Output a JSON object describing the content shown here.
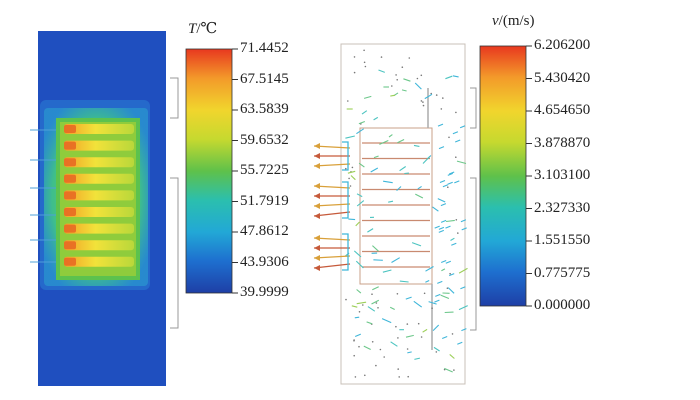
{
  "temperature_panel": {
    "symbol": "T",
    "unit": "/℃",
    "colorbar": {
      "ticks": [
        "71.4452",
        "67.5145",
        "63.5839",
        "59.6532",
        "55.7225",
        "51.7919",
        "47.8612",
        "43.9306",
        "39.9999"
      ]
    },
    "colors": {
      "background": "#1f4fbf",
      "hot": "#e84a1e",
      "fin": "#f2e23a",
      "warm": "#7cc540",
      "cool": "#33b6c9"
    }
  },
  "velocity_panel": {
    "symbol": "v",
    "unit": "/(m/s)",
    "colorbar": {
      "ticks": [
        "6.206200",
        "5.430420",
        "4.654650",
        "3.878870",
        "3.103100",
        "2.327330",
        "1.551550",
        "0.775775",
        "0.000000"
      ]
    },
    "colors": {
      "vector_slow": "#3fb6d9",
      "vector_fast": "#c65a3a",
      "outline": "#c9a08a"
    }
  },
  "colormap": [
    "#1e3fa6",
    "#1f6fd0",
    "#22a3d8",
    "#2bc0c4",
    "#3fbf7a",
    "#7ec840",
    "#c8d82e",
    "#f0d030",
    "#f39a2a",
    "#e83520"
  ]
}
